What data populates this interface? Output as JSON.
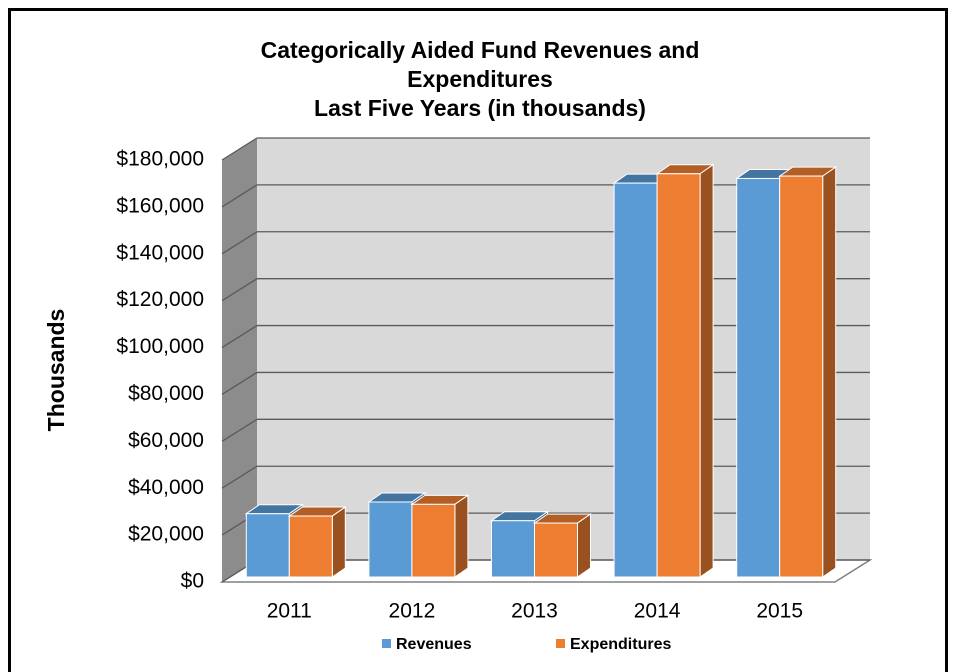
{
  "chart_data": {
    "type": "bar3d",
    "title": "Categorically Aided Fund Revenues and Expenditures",
    "subtitle": "Last Five Years (in thousands)",
    "y_label": "Thousands",
    "categories": [
      "2011",
      "2012",
      "2013",
      "2014",
      "2015"
    ],
    "series": [
      {
        "name": "Revenues",
        "color": "#5b9bd5",
        "values": [
          27000,
          32000,
          24000,
          168000,
          170000
        ]
      },
      {
        "name": "Expenditures",
        "color": "#ed7d31",
        "values": [
          26000,
          31000,
          23000,
          172000,
          171000
        ]
      }
    ],
    "ylim": [
      0,
      180000
    ],
    "yticks": [
      {
        "value": 0,
        "label": "$0"
      },
      {
        "value": 20000,
        "label": "$20,000"
      },
      {
        "value": 40000,
        "label": "$40,000"
      },
      {
        "value": 60000,
        "label": "$60,000"
      },
      {
        "value": 80000,
        "label": "$80,000"
      },
      {
        "value": 100000,
        "label": "$100,000"
      },
      {
        "value": 120000,
        "label": "$120,000"
      },
      {
        "value": 140000,
        "label": "$140,000"
      },
      {
        "value": 160000,
        "label": "$160,000"
      },
      {
        "value": 180000,
        "label": "$180,000"
      }
    ],
    "grid": true,
    "legend": "bottom"
  }
}
